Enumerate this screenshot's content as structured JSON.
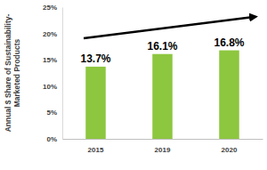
{
  "chart_data": {
    "type": "bar",
    "y_label": [
      "Annual $ Share of Sustainability-",
      "Marketed Products"
    ],
    "categories": [
      "2015",
      "2019",
      "2020"
    ],
    "values": [
      13.7,
      16.1,
      16.8
    ],
    "value_labels": [
      "13.7%",
      "16.1%",
      "16.8%"
    ],
    "color": "#8dc63f",
    "ylim": [
      0,
      25
    ],
    "yticks": [
      {
        "value": 0,
        "label": "0%"
      },
      {
        "value": 5,
        "label": "5%"
      },
      {
        "value": 10,
        "label": "10%"
      },
      {
        "value": 15,
        "label": "15%"
      },
      {
        "value": 20,
        "label": "20%"
      },
      {
        "value": 25,
        "label": "25%"
      }
    ],
    "grid": false,
    "data_labels": true
  }
}
